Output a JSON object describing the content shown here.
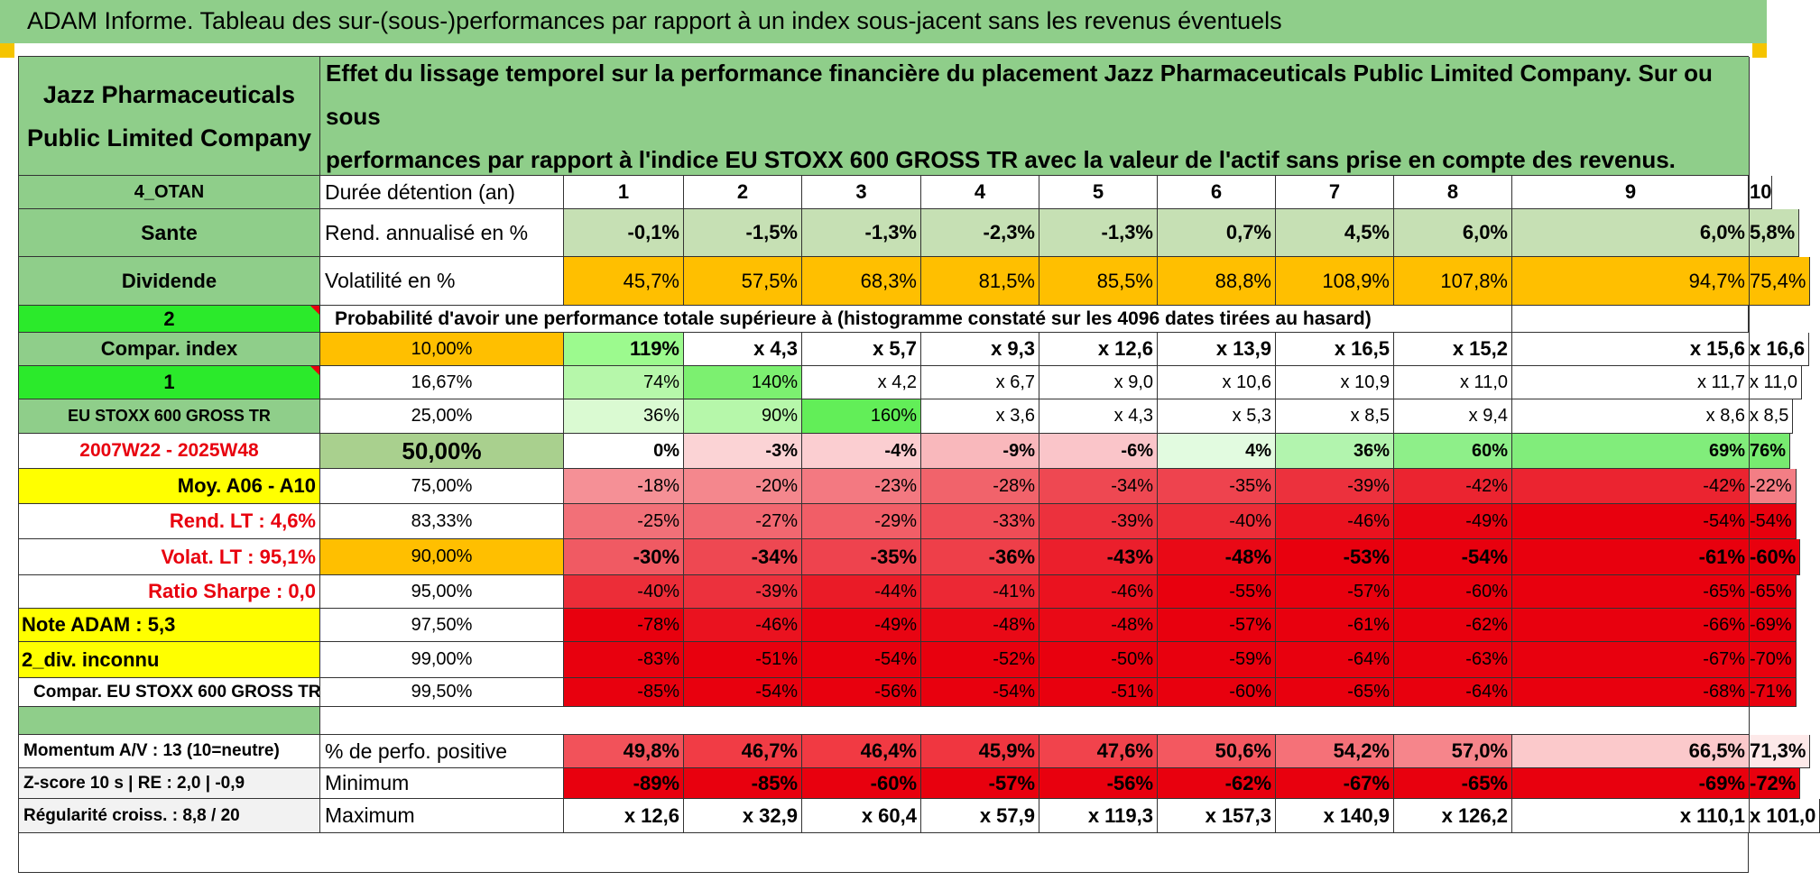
{
  "title": "ADAM Informe. Tableau des sur-(sous-)performances par rapport à un index sous-jacent sans les revenus éventuels",
  "colors": {
    "header_green": "#8fce8a",
    "bright_green": "#2bea2b",
    "yellow": "#ffff00",
    "orange": "#ffbf00",
    "red": "#e8000e"
  },
  "company": {
    "line1": "Jazz Pharmaceuticals",
    "line2": "Public Limited Company"
  },
  "description": {
    "line1": "Effet du lissage temporel sur la performance financière du placement Jazz Pharmaceuticals Public Limited Company. Sur ou sous",
    "line2": "performances par rapport à l'indice EU STOXX 600 GROSS TR avec la valeur de l'actif sans prise en compte des revenus."
  },
  "left": {
    "otan": "4_OTAN",
    "sector": "Sante",
    "dividend": "Dividende",
    "n2": "2",
    "compar_index": "Compar. index",
    "n1": "1",
    "index_name": "EU STOXX 600 GROSS TR",
    "period": "2007W22 - 2025W48",
    "moy": "Moy. A06 - A10",
    "rend_lt": "Rend. LT :    4,6%",
    "volat_lt": "Volat. LT :    95,1%",
    "sharpe": "Ratio Sharpe :     0,0",
    "note": "Note ADAM : 5,3",
    "div": "2_div. inconnu",
    "compar_full": "Compar. EU STOXX 600 GROSS TR"
  },
  "header_row": {
    "label": "Durée détention (an)",
    "years": [
      "1",
      "2",
      "3",
      "4",
      "5",
      "6",
      "7",
      "8",
      "9",
      "10"
    ]
  },
  "rend_row": {
    "label": "Rend. annualisé en %",
    "values": [
      "-0,1%",
      "-1,5%",
      "-1,3%",
      "-2,3%",
      "-1,3%",
      "0,7%",
      "4,5%",
      "6,0%",
      "6,0%",
      "5,8%"
    ]
  },
  "vol_row": {
    "label": "Volatilité en %",
    "values": [
      "45,7%",
      "57,5%",
      "68,3%",
      "81,5%",
      "85,5%",
      "88,8%",
      "108,9%",
      "107,8%",
      "94,7%",
      "75,4%"
    ]
  },
  "prob_title": "Probabilité d'avoir une performance totale supérieure à (histogramme constaté sur les 4096 dates tirées au hasard)",
  "prob_rows": [
    {
      "pct": "10,00%",
      "values": [
        "119%",
        "x 4,3",
        "x 5,7",
        "x 9,3",
        "x 12,6",
        "x 13,9",
        "x 16,5",
        "x 15,2",
        "x 15,6",
        "x 16,6"
      ]
    },
    {
      "pct": "16,67%",
      "values": [
        "74%",
        "140%",
        "x 4,2",
        "x 6,7",
        "x 9,0",
        "x 10,6",
        "x 10,9",
        "x 11,0",
        "x 11,7",
        "x 11,0"
      ]
    },
    {
      "pct": "25,00%",
      "values": [
        "36%",
        "90%",
        "160%",
        "x 3,6",
        "x 4,3",
        "x 5,3",
        "x 8,5",
        "x 9,4",
        "x 8,6",
        "x 8,5"
      ]
    },
    {
      "pct": "50,00%",
      "values": [
        "0%",
        "-3%",
        "-4%",
        "-9%",
        "-6%",
        "4%",
        "36%",
        "60%",
        "69%",
        "76%"
      ]
    },
    {
      "pct": "75,00%",
      "values": [
        "-18%",
        "-20%",
        "-23%",
        "-28%",
        "-34%",
        "-35%",
        "-39%",
        "-42%",
        "-42%",
        "-22%"
      ]
    },
    {
      "pct": "83,33%",
      "values": [
        "-25%",
        "-27%",
        "-29%",
        "-33%",
        "-39%",
        "-40%",
        "-46%",
        "-49%",
        "-54%",
        "-54%"
      ]
    },
    {
      "pct": "90,00%",
      "values": [
        "-30%",
        "-34%",
        "-35%",
        "-36%",
        "-43%",
        "-48%",
        "-53%",
        "-54%",
        "-61%",
        "-60%"
      ]
    },
    {
      "pct": "95,00%",
      "values": [
        "-40%",
        "-39%",
        "-44%",
        "-41%",
        "-46%",
        "-55%",
        "-57%",
        "-60%",
        "-65%",
        "-65%"
      ]
    },
    {
      "pct": "97,50%",
      "values": [
        "-78%",
        "-46%",
        "-49%",
        "-48%",
        "-48%",
        "-57%",
        "-61%",
        "-62%",
        "-66%",
        "-69%"
      ]
    },
    {
      "pct": "99,00%",
      "values": [
        "-83%",
        "-51%",
        "-54%",
        "-52%",
        "-50%",
        "-59%",
        "-64%",
        "-63%",
        "-67%",
        "-70%"
      ]
    },
    {
      "pct": "99,50%",
      "values": [
        "-85%",
        "-54%",
        "-56%",
        "-54%",
        "-51%",
        "-60%",
        "-65%",
        "-64%",
        "-68%",
        "-71%"
      ]
    }
  ],
  "bottom_rows": [
    {
      "left": "Momentum A/V : 13 (10=neutre)",
      "label": "% de perfo. positive",
      "values": [
        "49,8%",
        "46,7%",
        "46,4%",
        "45,9%",
        "47,6%",
        "50,6%",
        "54,2%",
        "57,0%",
        "66,5%",
        "71,3%"
      ]
    },
    {
      "left": "Z-score 10 s | RE : 2,0 | -0,9",
      "label": "Minimum",
      "values": [
        "-89%",
        "-85%",
        "-60%",
        "-57%",
        "-56%",
        "-62%",
        "-67%",
        "-65%",
        "-69%",
        "-72%"
      ]
    },
    {
      "left": "Régularité croiss. : 8,8 / 20",
      "label": "Maximum",
      "values": [
        "x 12,6",
        "x 32,9",
        "x 60,4",
        "x 57,9",
        "x 119,3",
        "x 157,3",
        "x 140,9",
        "x 126,2",
        "x 110,1",
        "x 101,0"
      ]
    }
  ]
}
